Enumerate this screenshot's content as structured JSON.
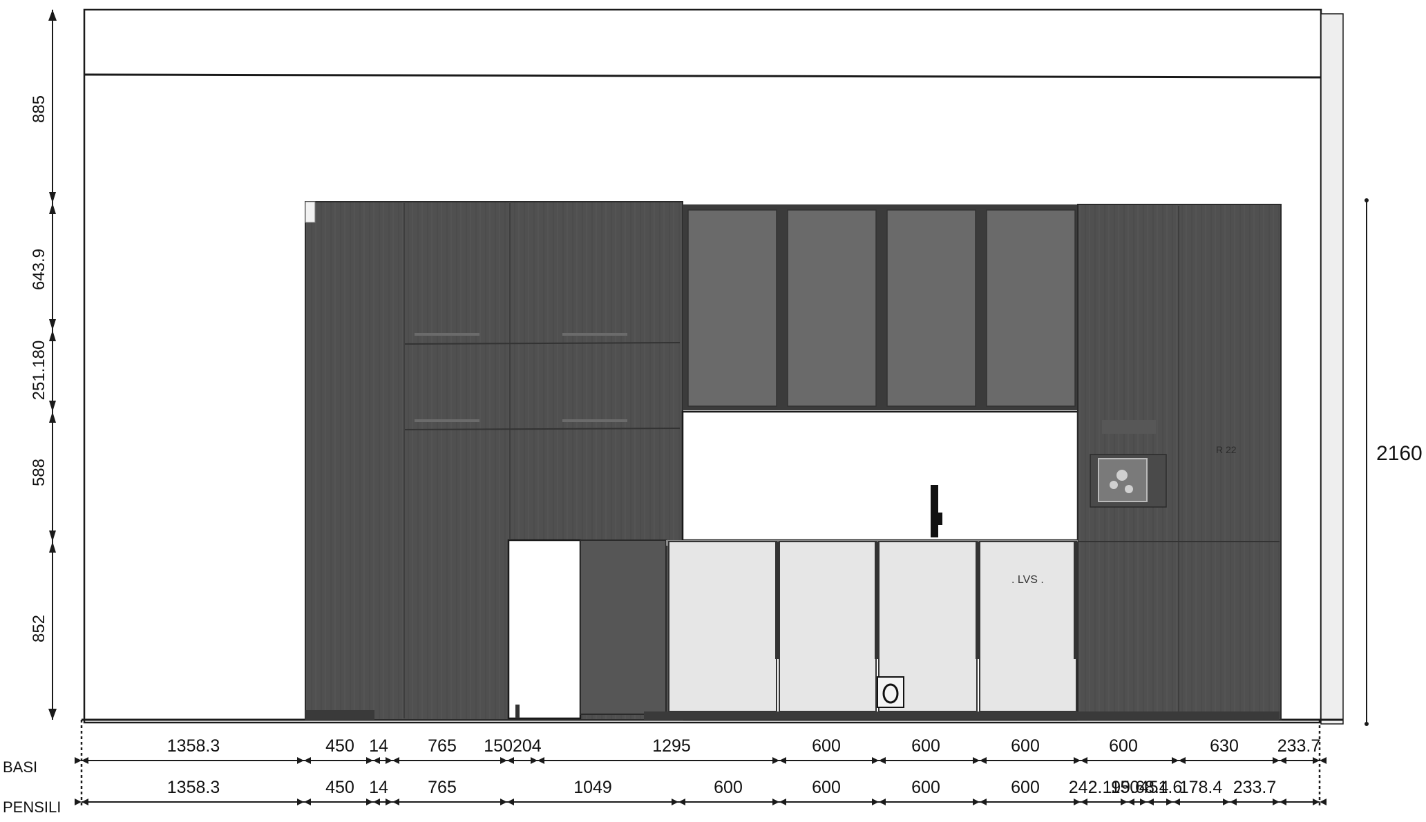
{
  "drawing": {
    "colors": {
      "wood_dark": "#4f4f4f",
      "wood_mid": "#5a5a5a",
      "glass_panel": "#6a6a6a",
      "base_light": "#dedede",
      "base_panel": "#e9e9e9",
      "wall": "#ffffff",
      "line": "#1a1a1a"
    },
    "height_dims": [
      "885",
      "643.9",
      "251.180",
      "588",
      "852"
    ],
    "total_height": "2160",
    "labels": {
      "lvs": ". LVS .",
      "tag_r": "R 22"
    },
    "rows": [
      {
        "name": "BASI",
        "values": [
          "1358.3",
          "450",
          "14",
          "765",
          "150204",
          "1295",
          "600",
          "600",
          "600",
          "600",
          "630",
          "233.7"
        ]
      },
      {
        "name": "PENSILI",
        "values": [
          "1358.3",
          "450",
          "14",
          "765",
          "1049",
          "600",
          "600",
          "600",
          "600",
          "242.1150",
          "99.68.4",
          "451.6",
          "178.4",
          "233.7"
        ]
      }
    ]
  }
}
